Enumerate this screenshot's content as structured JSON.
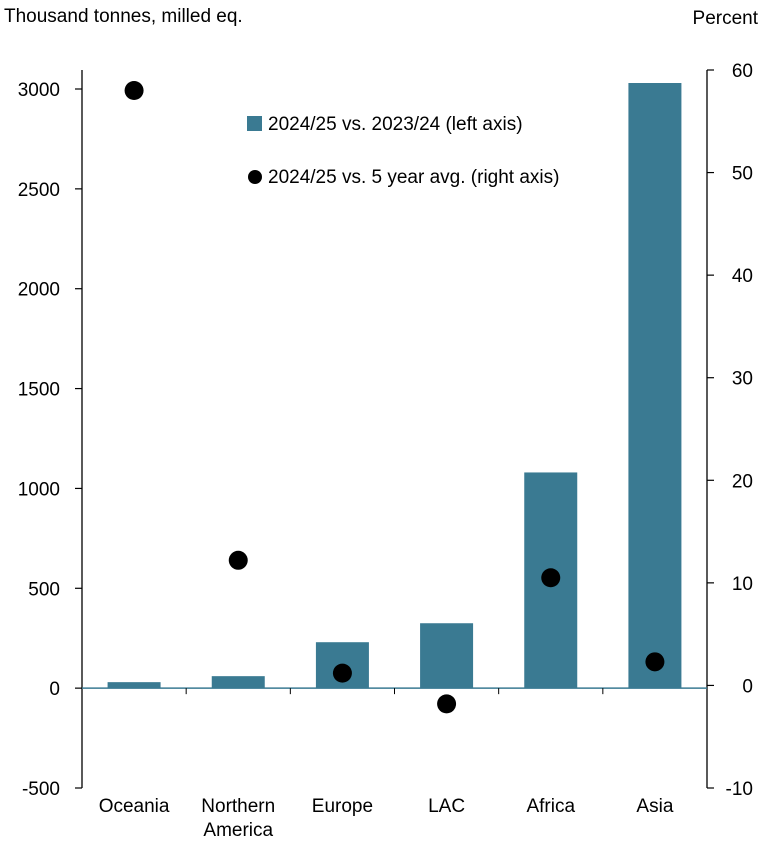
{
  "chart_data": {
    "type": "bar",
    "title": "",
    "xlabel": "",
    "left_axis_label": "Thousand tonnes, milled eq.",
    "right_axis_label": "Percent",
    "categories": [
      "Oceania",
      "Northern America",
      "Europe",
      "LAC",
      "Africa",
      "Asia"
    ],
    "category_labels": [
      [
        "Oceania"
      ],
      [
        "Northern",
        "America"
      ],
      [
        "Europe"
      ],
      [
        "LAC"
      ],
      [
        "Africa"
      ],
      [
        "Asia"
      ]
    ],
    "ylim_left": [
      -500,
      3000
    ],
    "ylim_right": [
      -10,
      60
    ],
    "left_ticks": [
      "-500",
      "0",
      "500",
      "1000",
      "1500",
      "2000",
      "2500",
      "3000"
    ],
    "left_tick_values": [
      -500,
      0,
      500,
      1000,
      1500,
      2000,
      2500,
      3000
    ],
    "right_ticks": [
      "-10",
      "0",
      "10",
      "20",
      "30",
      "40",
      "50",
      "60"
    ],
    "right_tick_values": [
      -10,
      0,
      10,
      20,
      30,
      40,
      50,
      60
    ],
    "grid": false,
    "legend_position": "top-center",
    "series": [
      {
        "name": "2024/25 vs. 2023/24 (left axis)",
        "kind": "bar",
        "axis": "left",
        "color": "#3a7a92",
        "values": [
          30,
          60,
          230,
          325,
          1080,
          3030
        ]
      },
      {
        "name": "2024/25 vs. 5 year avg. (right axis)",
        "kind": "scatter",
        "axis": "right",
        "color": "#000000",
        "values": [
          58,
          12.2,
          1.2,
          -1.8,
          10.5,
          2.3
        ]
      }
    ]
  }
}
